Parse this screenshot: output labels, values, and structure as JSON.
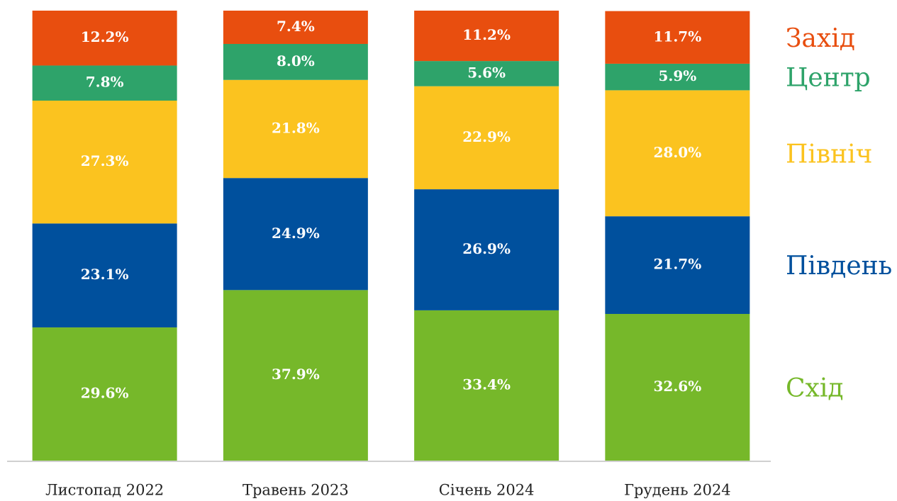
{
  "chart_data": {
    "type": "stacked_bar",
    "categories": [
      "Листопад 2022",
      "Травень 2023",
      "Січень 2024",
      "Грудень 2024"
    ],
    "series": [
      {
        "name": "Схід",
        "color": "#76b82a",
        "values": [
          29.6,
          37.9,
          33.4,
          32.6
        ],
        "value_labels": [
          "29.6%",
          "37.9%",
          "33.4%",
          "32.6%"
        ]
      },
      {
        "name": "Південь",
        "color": "#00509d",
        "values": [
          23.1,
          24.9,
          26.9,
          21.7
        ],
        "value_labels": [
          "23.1%",
          "24.9%",
          "26.9%",
          "21.7%"
        ]
      },
      {
        "name": "Північ",
        "color": "#fbc31f",
        "values": [
          27.3,
          21.8,
          22.9,
          28.0
        ],
        "value_labels": [
          "27.3%",
          "21.8%",
          "22.9%",
          "28.0%"
        ]
      },
      {
        "name": "Центр",
        "color": "#2ea36a",
        "values": [
          7.8,
          8.0,
          5.6,
          5.9
        ],
        "value_labels": [
          "7.8%",
          "8.0%",
          "5.6%",
          "5.9%"
        ]
      },
      {
        "name": "Захід",
        "color": "#e84e0f",
        "values": [
          12.2,
          7.4,
          11.2,
          11.7
        ],
        "value_labels": [
          "12.2%",
          "7.4%",
          "11.2%",
          "11.7%"
        ]
      }
    ],
    "ylim": [
      0,
      100
    ]
  }
}
